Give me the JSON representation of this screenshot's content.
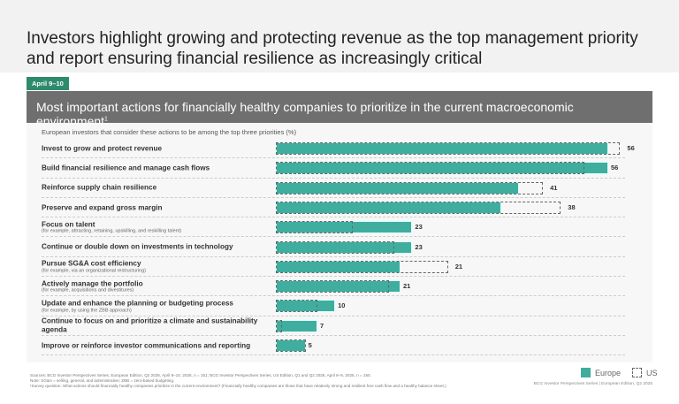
{
  "title": "Investors highlight growing and protecting revenue as the top management priority and report ensuring financial resilience as increasingly critical",
  "badge": "April 9–10",
  "colors": {
    "europe": "#3fae9e",
    "header": "#6f6f6f",
    "badge": "#2e8a6c"
  },
  "chart_data": {
    "type": "bar",
    "orientation": "horizontal",
    "title": "Most important actions for financially healthy companies to prioritize in the current macroeconomic environment",
    "title_footnote": "1",
    "subtitle": "European investors that consider these actions to be among the top three priorities (%)",
    "categories": [
      {
        "label": "Invest to grow and protect revenue",
        "note": ""
      },
      {
        "label": "Build financial resilience and manage cash flows",
        "note": ""
      },
      {
        "label": "Reinforce supply chain resilience",
        "note": ""
      },
      {
        "label": "Preserve and expand gross margin",
        "note": ""
      },
      {
        "label": "Focus on talent",
        "note": "(for example, attracting, retaining, upskilling, and reskilling talent)"
      },
      {
        "label": "Continue or double down on investments in technology",
        "note": ""
      },
      {
        "label": "Pursue SG&A cost efficiency",
        "note": "(for example, via an organizational restructuring)"
      },
      {
        "label": "Actively manage the portfolio",
        "note": "(for example, acquisitions and divestitures)"
      },
      {
        "label": "Update and enhance the planning or budgeting process",
        "note": "(for example, by using the ZBB approach)"
      },
      {
        "label": "Continue to focus on and prioritize a climate and sustainability agenda",
        "note": ""
      },
      {
        "label": "Improve or reinforce investor communications and reporting",
        "note": ""
      }
    ],
    "series": [
      {
        "name": "Europe",
        "values": [
          56,
          56,
          41,
          38,
          23,
          23,
          21,
          21,
          10,
          7,
          5
        ]
      },
      {
        "name": "US",
        "values": [
          58,
          52,
          45,
          48,
          13,
          20,
          29,
          19,
          7,
          1,
          5
        ]
      }
    ],
    "xlim": [
      0,
      60
    ],
    "legend": "bottom-right"
  },
  "footer": {
    "sources": "Sources: BCG Investor Perspectives Series, European Edition, Q2 2025, April 9–10, 2025, n = 151; BCG Investor Perspectives Series, US Edition, Q1 and Q2 2025, April 8–9, 2025, n = 150.",
    "note": "Note: SG&A = selling, general, and administrative; ZBB = zero-based budgeting.",
    "footnote": "¹Survey question: What actions should financially healthy companies prioritize in the current environment? (Financially healthy companies are those that have relatively strong and resilient free cash flow and a healthy balance sheet.)",
    "credit": "BCG Investor Perspectives Series | European Edition, Q2 2025"
  }
}
